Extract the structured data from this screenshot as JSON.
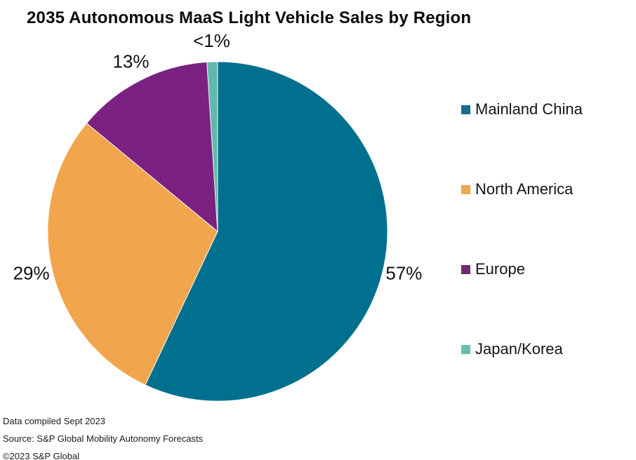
{
  "chart_data": {
    "type": "pie",
    "title": "2035 Autonomous MaaS Light Vehicle Sales by Region",
    "categories": [
      "Mainland China",
      "North America",
      "Europe",
      "Japan/Korea"
    ],
    "values": [
      57,
      29,
      13,
      1
    ],
    "labels": [
      "57%",
      "29%",
      "13%",
      "<1%"
    ],
    "colors": [
      "#016F8E",
      "#F1A64D",
      "#7A2182",
      "#62B8AC"
    ],
    "start_angle_deg": 0,
    "direction": "clockwise",
    "legend_position": "right",
    "data_labels": "outside"
  },
  "legend": {
    "items": [
      {
        "label": "Mainland China",
        "color": "#1A6E8C"
      },
      {
        "label": "North America",
        "color": "#E9A94F"
      },
      {
        "label": "Europe",
        "color": "#6F2D72"
      },
      {
        "label": "Japan/Korea",
        "color": "#68BFA9"
      }
    ]
  },
  "footer": {
    "lines": [
      "Data compiled Sept 2023",
      "Source: S&P Global Mobility Autonomy Forecasts",
      "©2023 S&P Global"
    ]
  }
}
